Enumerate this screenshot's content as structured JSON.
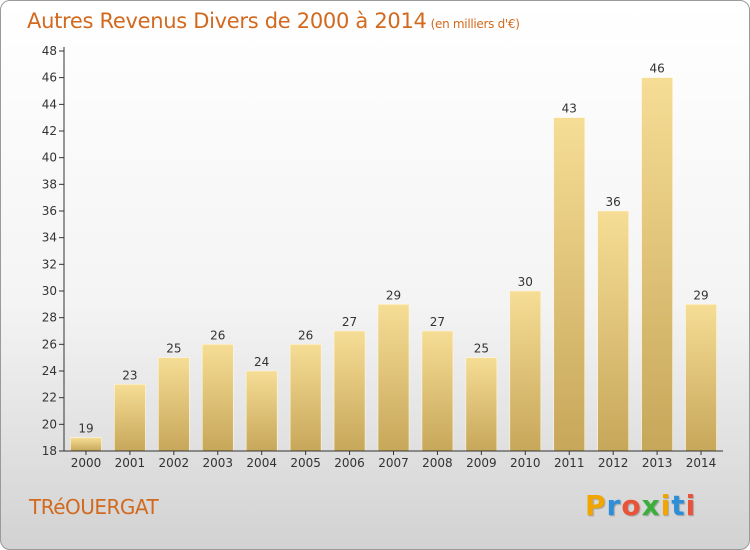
{
  "header": {
    "title": "Autres Revenus Divers de 2000 à 2014",
    "subtitle": "(en milliers d'€)"
  },
  "footer": {
    "commune": "TRéOUERGAT",
    "brand_letters": [
      "P",
      "r",
      "o",
      "x",
      "i",
      "t",
      "i"
    ],
    "brand_colors": [
      "#f0a500",
      "#2e8fd8",
      "#e8533a",
      "#3cae3c",
      "#f0a500",
      "#2e8fd8",
      "#e8533a"
    ]
  },
  "colors": {
    "title": "#d2691e",
    "bar_light": "#f6dd95",
    "bar_dark": "#c7a75a"
  },
  "chart_data": {
    "type": "bar",
    "categories": [
      "2000",
      "2001",
      "2002",
      "2003",
      "2004",
      "2005",
      "2006",
      "2007",
      "2008",
      "2009",
      "2010",
      "2011",
      "2012",
      "2013",
      "2014"
    ],
    "values": [
      19,
      23,
      25,
      26,
      24,
      26,
      27,
      29,
      27,
      25,
      30,
      43,
      36,
      46,
      29
    ],
    "title": "Autres Revenus Divers de 2000 à 2014",
    "ylim": [
      18,
      48
    ],
    "yticks": [
      18,
      20,
      22,
      24,
      26,
      28,
      30,
      32,
      34,
      36,
      38,
      40,
      42,
      44,
      46,
      48
    ],
    "grid": false,
    "data_labels": true
  }
}
